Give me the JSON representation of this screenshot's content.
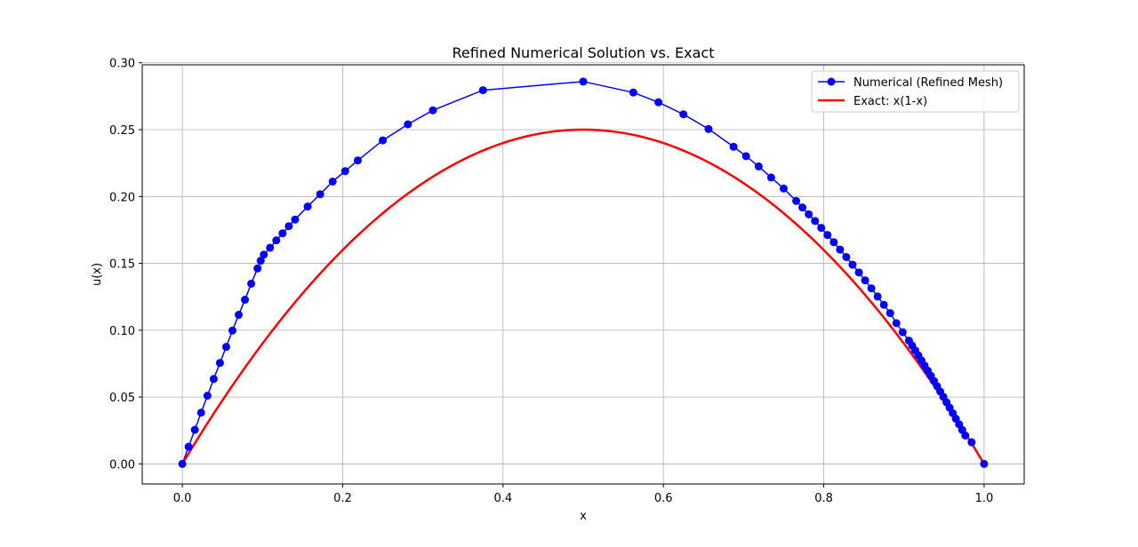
{
  "chart_data": {
    "type": "line",
    "title": "Refined Numerical Solution vs. Exact",
    "xlabel": "x",
    "ylabel": "u(x)",
    "xlim": [
      -0.05,
      1.05
    ],
    "ylim": [
      -0.015,
      0.2985
    ],
    "grid": true,
    "legend_position": "top-right",
    "x_ticks": [
      {
        "value": 0.0,
        "label": "0.0"
      },
      {
        "value": 0.2,
        "label": "0.2"
      },
      {
        "value": 0.4,
        "label": "0.4"
      },
      {
        "value": 0.6,
        "label": "0.6"
      },
      {
        "value": 0.8,
        "label": "0.8"
      },
      {
        "value": 1.0,
        "label": "1.0"
      }
    ],
    "y_ticks": [
      {
        "value": 0.0,
        "label": "0.00"
      },
      {
        "value": 0.05,
        "label": "0.05"
      },
      {
        "value": 0.1,
        "label": "0.10"
      },
      {
        "value": 0.15,
        "label": "0.15"
      },
      {
        "value": 0.2,
        "label": "0.20"
      },
      {
        "value": 0.25,
        "label": "0.25"
      },
      {
        "value": 0.3,
        "label": "0.30"
      }
    ],
    "series": [
      {
        "name": "Numerical (Refined Mesh)",
        "color": "#0000ff",
        "style": "line-markers",
        "points": [
          [
            0.0,
            0.0
          ],
          [
            0.0078,
            0.0128
          ],
          [
            0.0156,
            0.0255
          ],
          [
            0.0234,
            0.0383
          ],
          [
            0.0313,
            0.051
          ],
          [
            0.0391,
            0.0635
          ],
          [
            0.0469,
            0.0755
          ],
          [
            0.0547,
            0.0875
          ],
          [
            0.0625,
            0.0997
          ],
          [
            0.0703,
            0.1115
          ],
          [
            0.0781,
            0.1228
          ],
          [
            0.0859,
            0.1348
          ],
          [
            0.0938,
            0.1462
          ],
          [
            0.0977,
            0.152
          ],
          [
            0.1016,
            0.1565
          ],
          [
            0.1094,
            0.1617
          ],
          [
            0.1172,
            0.1672
          ],
          [
            0.125,
            0.1725
          ],
          [
            0.1328,
            0.1778
          ],
          [
            0.1406,
            0.1828
          ],
          [
            0.1563,
            0.1925
          ],
          [
            0.1719,
            0.2017
          ],
          [
            0.1875,
            0.2112
          ],
          [
            0.2031,
            0.219
          ],
          [
            0.2188,
            0.227
          ],
          [
            0.25,
            0.242
          ],
          [
            0.2813,
            0.254
          ],
          [
            0.3125,
            0.2645
          ],
          [
            0.375,
            0.2795
          ],
          [
            0.5,
            0.286
          ],
          [
            0.5625,
            0.2778
          ],
          [
            0.5938,
            0.2705
          ],
          [
            0.625,
            0.2615
          ],
          [
            0.6563,
            0.2505
          ],
          [
            0.6875,
            0.2372
          ],
          [
            0.7031,
            0.2302
          ],
          [
            0.7188,
            0.2225
          ],
          [
            0.7344,
            0.2142
          ],
          [
            0.75,
            0.206
          ],
          [
            0.7656,
            0.1967
          ],
          [
            0.7734,
            0.1918
          ],
          [
            0.7813,
            0.1867
          ],
          [
            0.7891,
            0.1817
          ],
          [
            0.7969,
            0.1765
          ],
          [
            0.8047,
            0.1712
          ],
          [
            0.8125,
            0.1658
          ],
          [
            0.8203,
            0.1603
          ],
          [
            0.8281,
            0.1547
          ],
          [
            0.8359,
            0.149
          ],
          [
            0.8438,
            0.1432
          ],
          [
            0.8516,
            0.1373
          ],
          [
            0.8594,
            0.1313
          ],
          [
            0.8672,
            0.1252
          ],
          [
            0.875,
            0.119
          ],
          [
            0.8828,
            0.1128
          ],
          [
            0.8906,
            0.1053
          ],
          [
            0.8984,
            0.0985
          ],
          [
            0.9063,
            0.0922
          ],
          [
            0.9102,
            0.0885
          ],
          [
            0.9141,
            0.0848
          ],
          [
            0.918,
            0.0811
          ],
          [
            0.9219,
            0.0773
          ],
          [
            0.9258,
            0.0735
          ],
          [
            0.9297,
            0.0697
          ],
          [
            0.9336,
            0.0659
          ],
          [
            0.9375,
            0.062
          ],
          [
            0.9414,
            0.0581
          ],
          [
            0.9453,
            0.0541
          ],
          [
            0.9492,
            0.0501
          ],
          [
            0.9531,
            0.0461
          ],
          [
            0.957,
            0.042
          ],
          [
            0.9609,
            0.0379
          ],
          [
            0.9648,
            0.0338
          ],
          [
            0.9688,
            0.0296
          ],
          [
            0.9727,
            0.0254
          ],
          [
            0.9766,
            0.0212
          ],
          [
            0.9844,
            0.0162
          ],
          [
            1.0,
            0.0
          ]
        ]
      },
      {
        "name": "Exact: x(1-x)",
        "color": "#ff0000",
        "style": "line",
        "function": "x(1-x)",
        "x_range": [
          0.0,
          1.0
        ],
        "samples": 200
      }
    ]
  }
}
